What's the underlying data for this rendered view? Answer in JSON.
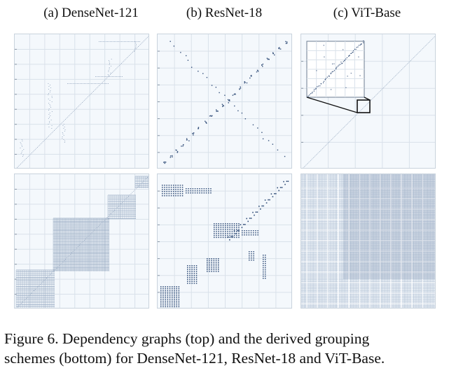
{
  "columns": [
    {
      "id": "densenet",
      "label": "(a) DenseNet-121"
    },
    {
      "id": "resnet",
      "label": "(b) ResNet-18"
    },
    {
      "id": "vit",
      "label": "(c) ViT-Base"
    }
  ],
  "rows": [
    "dependency-graph",
    "grouping-scheme"
  ],
  "caption": {
    "line1": "Figure 6.  Dependency graphs (top) and the derived grouping",
    "line2": "schemes (bottom) for DenseNet-121, ResNet-18 and ViT-Base."
  },
  "colors": {
    "grid": "#d9e1ea",
    "dots": "#34507a",
    "light_dots": "#9fb0c6",
    "panel_bg": "#f4f8fc",
    "zoom_box": "#111111"
  }
}
